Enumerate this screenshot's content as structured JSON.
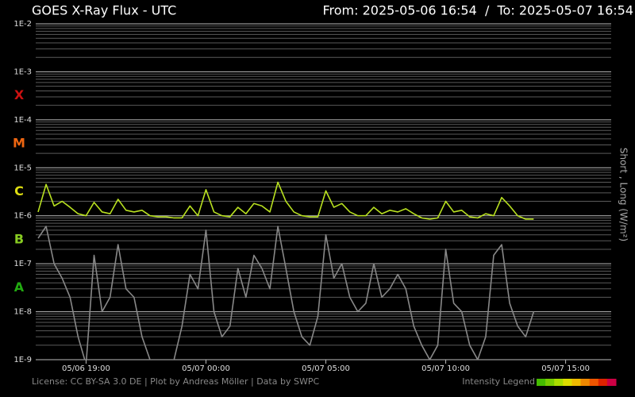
{
  "chart_data": {
    "type": "line",
    "title": "GOES X-Ray Flux - UTC",
    "subtitle": "From: 2025-05-06 16:54  /  To: 2025-05-07 16:54",
    "y_axis_label": "Short , Long (W/m²)",
    "footer": "License: CC BY-SA 3.0 DE | Plot by Andreas Möller | Data by SWPC",
    "intensity_legend": {
      "label": "Intensity Legend",
      "colors": [
        "#44bb00",
        "#77cc00",
        "#aadd00",
        "#dddd00",
        "#eebb00",
        "#ee8800",
        "#ee5500",
        "#dd2200",
        "#cc0044"
      ]
    },
    "yscale": "log",
    "ylim": [
      1e-09,
      0.01
    ],
    "yticks": [
      {
        "value": 1e-09,
        "label": "1E-9"
      },
      {
        "value": 1e-08,
        "label": "1E-8"
      },
      {
        "value": 1e-07,
        "label": "1E-7"
      },
      {
        "value": 1e-06,
        "label": "1E-6"
      },
      {
        "value": 1e-05,
        "label": "1E-5"
      },
      {
        "value": 0.0001,
        "label": "1E-4"
      },
      {
        "value": 0.001,
        "label": "1E-3"
      },
      {
        "value": 0.01,
        "label": "1E-2"
      }
    ],
    "grid": true,
    "minor_grid": true,
    "xlim": [
      "05/06 16:54",
      "05/07 16:54"
    ],
    "xticks": [
      "05/06 19:00",
      "05/07 00:00",
      "05/07 05:00",
      "05/07 10:00",
      "05/07 15:00"
    ],
    "flare_classes": [
      {
        "label": "X",
        "min": 0.0001,
        "color": "#cc1111"
      },
      {
        "label": "M",
        "min": 1e-05,
        "color": "#ee6611"
      },
      {
        "label": "C",
        "min": 1e-06,
        "color": "#dddd11"
      },
      {
        "label": "B",
        "min": 1e-07,
        "color": "#88cc22"
      },
      {
        "label": "A",
        "min": 1e-08,
        "color": "#22aa11"
      }
    ],
    "x": [
      "05/06 17:00",
      "05/06 17:20",
      "05/06 17:40",
      "05/06 18:00",
      "05/06 18:20",
      "05/06 18:40",
      "05/06 19:00",
      "05/06 19:20",
      "05/06 19:40",
      "05/06 20:00",
      "05/06 20:20",
      "05/06 20:40",
      "05/06 21:00",
      "05/06 21:20",
      "05/06 21:40",
      "05/06 22:00",
      "05/06 22:20",
      "05/06 22:40",
      "05/06 23:00",
      "05/06 23:20",
      "05/06 23:40",
      "05/07 00:00",
      "05/07 00:20",
      "05/07 00:40",
      "05/07 01:00",
      "05/07 01:20",
      "05/07 01:40",
      "05/07 02:00",
      "05/07 02:20",
      "05/07 02:40",
      "05/07 03:00",
      "05/07 03:20",
      "05/07 03:40",
      "05/07 04:00",
      "05/07 04:20",
      "05/07 04:40",
      "05/07 05:00",
      "05/07 05:20",
      "05/07 05:40",
      "05/07 06:00",
      "05/07 06:20",
      "05/07 06:40",
      "05/07 07:00",
      "05/07 07:20",
      "05/07 07:40",
      "05/07 08:00",
      "05/07 08:20",
      "05/07 08:40",
      "05/07 09:00",
      "05/07 09:20",
      "05/07 09:40",
      "05/07 10:00",
      "05/07 10:20",
      "05/07 10:40",
      "05/07 11:00",
      "05/07 11:20",
      "05/07 11:40",
      "05/07 12:00",
      "05/07 12:20",
      "05/07 12:40",
      "05/07 13:00",
      "05/07 13:20",
      "05/07 13:40"
    ],
    "series": [
      {
        "name": "Long",
        "color": "#b8e020",
        "values": [
          1.2e-06,
          4.5e-06,
          1.6e-06,
          2e-06,
          1.5e-06,
          1.1e-06,
          1e-06,
          1.9e-06,
          1.2e-06,
          1.1e-06,
          2.2e-06,
          1.3e-06,
          1.2e-06,
          1.3e-06,
          1e-06,
          9.5e-07,
          9.5e-07,
          9e-07,
          9e-07,
          1.6e-06,
          1e-06,
          3.5e-06,
          1.2e-06,
          1e-06,
          9.5e-07,
          1.5e-06,
          1.1e-06,
          1.8e-06,
          1.6e-06,
          1.2e-06,
          5e-06,
          2e-06,
          1.2e-06,
          1e-06,
          9.5e-07,
          9.5e-07,
          3.3e-06,
          1.5e-06,
          1.8e-06,
          1.2e-06,
          1e-06,
          1e-06,
          1.5e-06,
          1.1e-06,
          1.3e-06,
          1.2e-06,
          1.4e-06,
          1.1e-06,
          9e-07,
          8.5e-07,
          9e-07,
          2e-06,
          1.2e-06,
          1.3e-06,
          9.5e-07,
          9e-07,
          1.1e-06,
          1e-06,
          2.4e-06,
          1.6e-06,
          1e-06,
          8.5e-07,
          8.5e-07
        ]
      },
      {
        "name": "Short",
        "color": "#888888",
        "values": [
          3.4e-07,
          6e-07,
          1e-07,
          5e-08,
          2e-08,
          3e-09,
          8e-10,
          1.5e-07,
          1e-08,
          2e-08,
          2.5e-07,
          3e-08,
          2e-08,
          3e-09,
          1e-09,
          8e-10,
          8e-10,
          1e-09,
          5e-09,
          6e-08,
          3e-08,
          5e-07,
          1e-08,
          3e-09,
          5e-09,
          8e-08,
          2e-08,
          1.5e-07,
          8e-08,
          3e-08,
          6e-07,
          8e-08,
          1e-08,
          3e-09,
          2e-09,
          8e-09,
          4e-07,
          5e-08,
          1e-07,
          2e-08,
          1e-08,
          1.5e-08,
          1e-07,
          2e-08,
          3e-08,
          6e-08,
          3e-08,
          5e-09,
          2e-09,
          1e-09,
          2e-09,
          2e-07,
          1.5e-08,
          1e-08,
          2e-09,
          1e-09,
          3e-09,
          1.5e-07,
          2.5e-07,
          1.5e-08,
          5e-09,
          3e-09,
          1e-08
        ]
      }
    ]
  }
}
